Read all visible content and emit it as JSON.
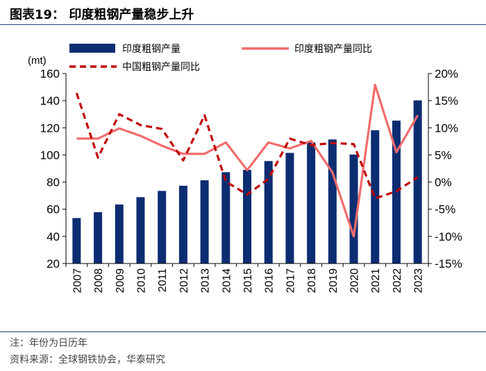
{
  "header": {
    "title": "图表19：  印度粗钢产量稳步上升"
  },
  "footer": {
    "note": "注：年份为日历年",
    "source": "资料来源：全球钢铁协会，华泰研究"
  },
  "colors": {
    "bar": "#0c2d72",
    "yoy_line": "#f26b6b",
    "cn_line": "#c00000",
    "axis": "#000000"
  },
  "chart_data": {
    "type": "bar",
    "categories": [
      "2007",
      "2008",
      "2009",
      "2010",
      "2011",
      "2012",
      "2013",
      "2014",
      "2015",
      "2016",
      "2017",
      "2018",
      "2019",
      "2020",
      "2021",
      "2022",
      "2023"
    ],
    "y_left": {
      "unit": "(mt)",
      "ylim": [
        20,
        160
      ],
      "ticks": [
        20,
        40,
        60,
        80,
        100,
        120,
        140,
        160
      ]
    },
    "y_right": {
      "ylim": [
        -15,
        20
      ],
      "ticks": [
        -15,
        -10,
        -5,
        0,
        5,
        10,
        15,
        20
      ],
      "tick_labels": [
        "-15%",
        "-10%",
        "-5%",
        "0%",
        "5%",
        "10%",
        "15%",
        "20%"
      ]
    },
    "legend": [
      "印度粗钢产量",
      "印度粗钢产量同比",
      "中国粗钢产量同比"
    ],
    "series": [
      {
        "name": "印度粗钢产量",
        "type": "bar",
        "axis": "left",
        "values": [
          53.5,
          57.8,
          63.5,
          68.9,
          73.5,
          77.3,
          81.3,
          87.3,
          89.0,
          95.5,
          101.5,
          109.3,
          111.4,
          100.3,
          118.2,
          125.3,
          140.2
        ]
      },
      {
        "name": "印度粗钢产量同比",
        "type": "line",
        "axis": "right",
        "style": "solid",
        "values": [
          8.0,
          8.0,
          9.9,
          8.5,
          6.7,
          5.2,
          5.2,
          7.3,
          2.2,
          7.3,
          6.2,
          7.6,
          1.8,
          -10.0,
          17.9,
          5.5,
          12.3
        ]
      },
      {
        "name": "中国粗钢产量同比",
        "type": "line",
        "axis": "right",
        "style": "dashed",
        "values": [
          16.4,
          4.5,
          12.5,
          10.5,
          9.8,
          4.0,
          12.3,
          0.1,
          -2.3,
          0.6,
          8.0,
          6.8,
          7.2,
          7.0,
          -3.0,
          -1.7,
          0.9
        ]
      }
    ]
  }
}
